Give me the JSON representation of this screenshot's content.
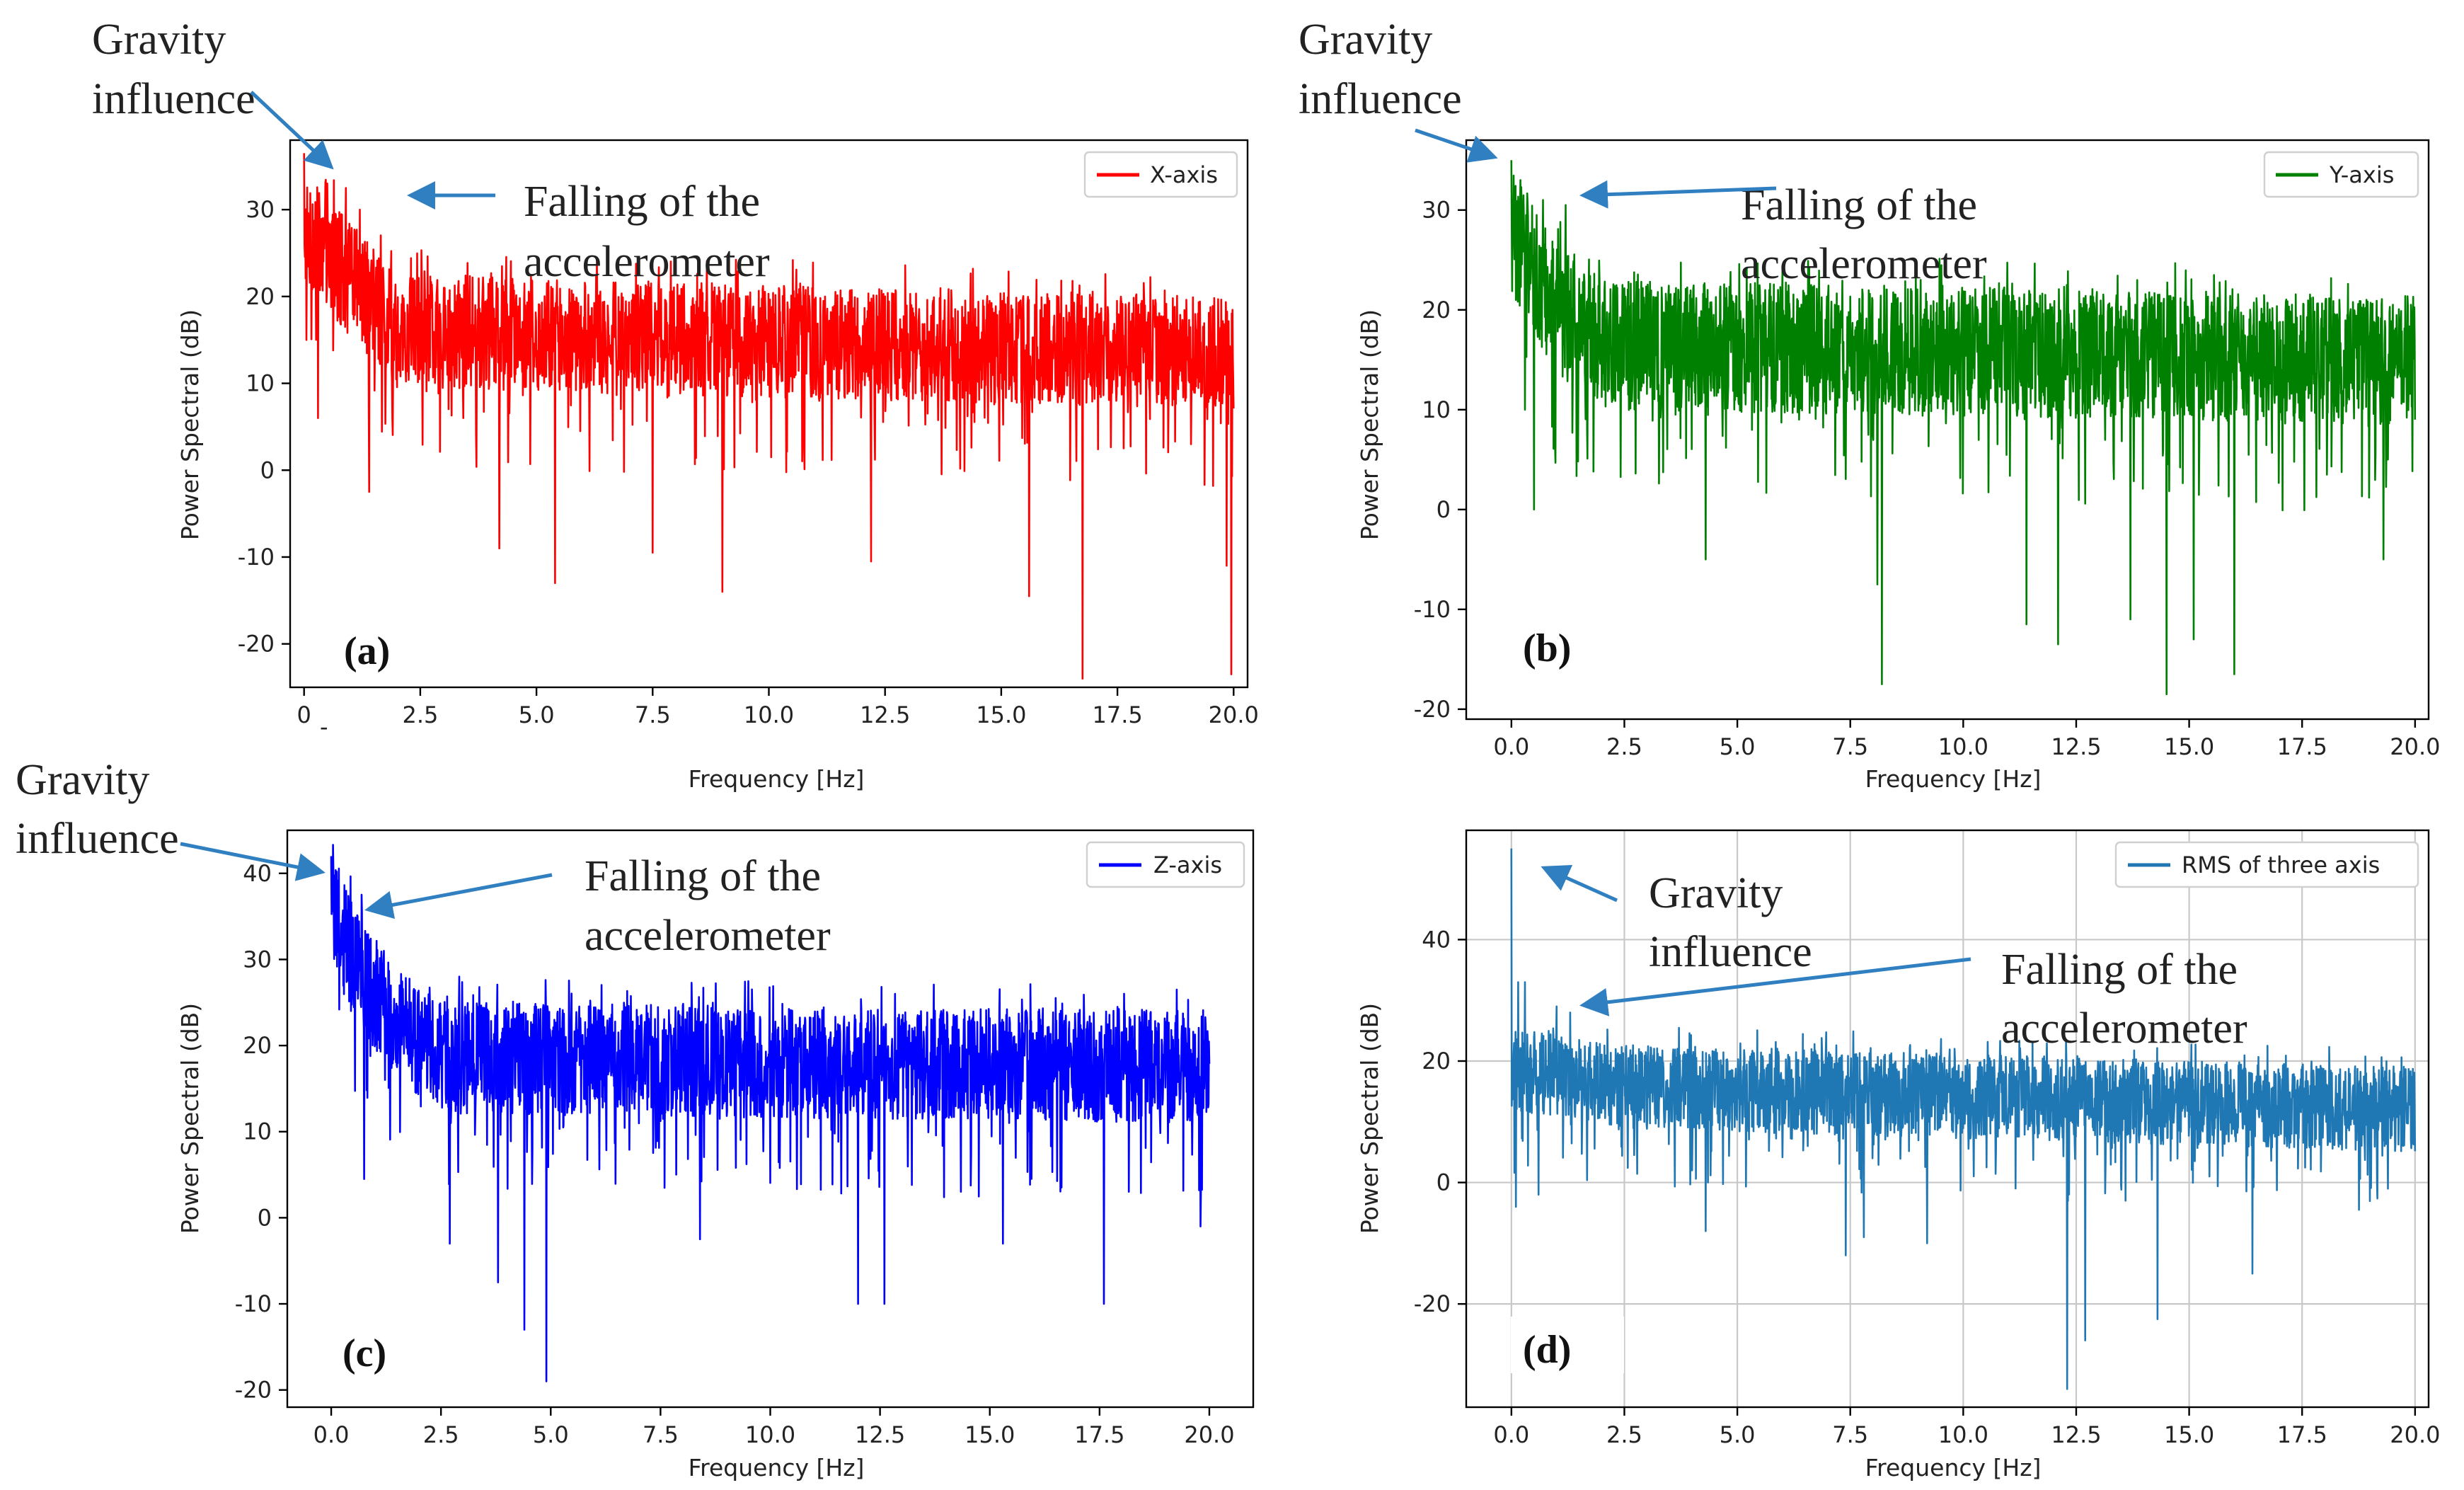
{
  "figure": {
    "annotation_color": "#2f7fc1"
  },
  "chart_data": [
    {
      "type": "line",
      "panel_label": "(a)",
      "title": "",
      "xlabel": "Frequency [Hz]",
      "ylabel": "Power Spectral (dB)",
      "xlim": [
        -0.3,
        20.3
      ],
      "ylim": [
        -25,
        38
      ],
      "xticks": [
        "0",
        "2.5",
        "5.0",
        "7.5",
        "10.0",
        "12.5",
        "15.0",
        "17.5",
        "20.0"
      ],
      "xtick_values": [
        0,
        2.5,
        5,
        7.5,
        10,
        12.5,
        15,
        17.5,
        20
      ],
      "extra_tick_text": "-",
      "yticks": [
        "30",
        "20",
        "10",
        "0",
        "-10",
        "-20"
      ],
      "ytick_values": [
        30,
        20,
        10,
        0,
        -10,
        -20
      ],
      "grid": false,
      "legend": "top-right",
      "series": [
        {
          "name": "X-axis",
          "color": "#ff0000",
          "x_range": [
            0,
            20
          ],
          "peak": 36.5,
          "baseline_points": [
            [
              0,
              28
            ],
            [
              0.5,
              25
            ],
            [
              1,
              22
            ],
            [
              2,
              16
            ],
            [
              20,
              13.5
            ]
          ],
          "spread": 6.5,
          "spikes": [
            [
              0.05,
              15
            ],
            [
              0.3,
              6
            ],
            [
              1.4,
              -2.5
            ],
            [
              4.2,
              -9
            ],
            [
              5.4,
              -13
            ],
            [
              7.5,
              -9.5
            ],
            [
              9.0,
              -14
            ],
            [
              12.2,
              -10.5
            ],
            [
              15.6,
              -14.5
            ],
            [
              16.75,
              -24
            ],
            [
              19.85,
              -11
            ],
            [
              19.95,
              -23.5
            ]
          ],
          "peaks_high": [
            [
              0.0,
              36.5
            ],
            [
              0.5,
              33
            ],
            [
              0.9,
              32.5
            ],
            [
              1.2,
              30
            ]
          ]
        }
      ],
      "annotations": [
        {
          "key": "gravity",
          "text": [
            "Gravity",
            "influence"
          ]
        },
        {
          "key": "falling",
          "text": [
            "Falling of the",
            "accelerometer"
          ]
        }
      ]
    },
    {
      "type": "line",
      "panel_label": "(b)",
      "title": "",
      "xlabel": "Frequency [Hz]",
      "ylabel": "Power Spectral (dB)",
      "xlim": [
        -1.0,
        20.3
      ],
      "ylim": [
        -21,
        37
      ],
      "xticks": [
        "0.0",
        "2.5",
        "5.0",
        "7.5",
        "10.0",
        "12.5",
        "15.0",
        "17.5",
        "20.0"
      ],
      "xtick_values": [
        0,
        2.5,
        5,
        7.5,
        10,
        12.5,
        15,
        17.5,
        20
      ],
      "yticks": [
        "30",
        "20",
        "10",
        "0",
        "-10",
        "-20"
      ],
      "ytick_values": [
        30,
        20,
        10,
        0,
        -10,
        -20
      ],
      "grid": false,
      "legend": "top-right",
      "series": [
        {
          "name": "Y-axis",
          "color": "#008000",
          "x_range": [
            0,
            20
          ],
          "peak": 35,
          "baseline_points": [
            [
              0,
              28
            ],
            [
              0.5,
              24
            ],
            [
              1,
              20
            ],
            [
              2,
              16.5
            ],
            [
              20,
              15
            ]
          ],
          "spread": 6.5,
          "spikes": [
            [
              0.1,
              21
            ],
            [
              0.3,
              10
            ],
            [
              0.5,
              0
            ],
            [
              4.3,
              -5
            ],
            [
              8.2,
              -17.5
            ],
            [
              8.1,
              -7.5
            ],
            [
              11.4,
              -11.5
            ],
            [
              12.1,
              -13.5
            ],
            [
              13.7,
              -11
            ],
            [
              14.5,
              -18.5
            ],
            [
              15.1,
              -13
            ],
            [
              16.0,
              -16.5
            ],
            [
              19.3,
              -5
            ]
          ],
          "peaks_high": [
            [
              0.0,
              35
            ],
            [
              0.2,
              33
            ],
            [
              0.7,
              31
            ],
            [
              1.2,
              30.5
            ]
          ]
        }
      ],
      "annotations": [
        {
          "key": "gravity",
          "text": [
            "Gravity",
            "influence"
          ]
        },
        {
          "key": "falling",
          "text": [
            "Falling of the",
            "accelerometer"
          ]
        }
      ]
    },
    {
      "type": "line",
      "panel_label": "(c)",
      "title": "",
      "xlabel": "Frequency [Hz]",
      "ylabel": "Power Spectral (dB)",
      "xlim": [
        -1.0,
        21.0
      ],
      "ylim": [
        -22,
        45
      ],
      "xticks": [
        "0.0",
        "2.5",
        "5.0",
        "7.5",
        "10.0",
        "12.5",
        "15.0",
        "17.5",
        "20.0"
      ],
      "xtick_values": [
        0,
        2.5,
        5,
        7.5,
        10,
        12.5,
        15,
        17.5,
        20
      ],
      "yticks": [
        "40",
        "30",
        "20",
        "10",
        "0",
        "-10",
        "-20"
      ],
      "ytick_values": [
        40,
        30,
        20,
        10,
        0,
        -10,
        -20
      ],
      "grid": false,
      "legend": "top-right",
      "series": [
        {
          "name": "Z-axis",
          "color": "#0000ff",
          "x_range": [
            0,
            20
          ],
          "peak": 42,
          "baseline_points": [
            [
              0,
              35
            ],
            [
              0.5,
              30
            ],
            [
              1,
              26
            ],
            [
              2,
              20
            ],
            [
              3,
              18.5
            ],
            [
              20,
              17.5
            ]
          ],
          "spread": 6.5,
          "spikes": [
            [
              0.4,
              5
            ],
            [
              0.75,
              4.5
            ],
            [
              2.7,
              -3
            ],
            [
              3.8,
              -7.5
            ],
            [
              4.4,
              -13
            ],
            [
              4.9,
              -19
            ],
            [
              8.4,
              -2.5
            ],
            [
              12.0,
              -10
            ],
            [
              12.6,
              -10
            ],
            [
              15.3,
              -3
            ],
            [
              17.6,
              -10
            ],
            [
              19.8,
              -1
            ]
          ],
          "peaks_high": [
            [
              0.0,
              42
            ],
            [
              0.4,
              36
            ],
            [
              0.7,
              35.5
            ],
            [
              1.2,
              31
            ]
          ]
        }
      ],
      "annotations": [
        {
          "key": "gravity",
          "text": [
            "Gravity",
            "influence"
          ]
        },
        {
          "key": "falling",
          "text": [
            "Falling of the",
            "accelerometer"
          ]
        }
      ]
    },
    {
      "type": "line",
      "panel_label": "(d)",
      "title": "",
      "xlabel": "Frequency [Hz]",
      "ylabel": "Power Spectral (dB)",
      "xlim": [
        -1.0,
        20.3
      ],
      "ylim": [
        -37,
        58
      ],
      "xticks": [
        "0.0",
        "2.5",
        "5.0",
        "7.5",
        "10.0",
        "12.5",
        "15.0",
        "17.5",
        "20.0"
      ],
      "xtick_values": [
        0,
        2.5,
        5,
        7.5,
        10,
        12.5,
        15,
        17.5,
        20
      ],
      "yticks": [
        "40",
        "20",
        "0",
        "-20"
      ],
      "ytick_values": [
        40,
        20,
        0,
        -20
      ],
      "grid": true,
      "legend": "top-right",
      "series": [
        {
          "name": "RMS of three axis",
          "color": "#1f77b4",
          "x_range": [
            0,
            20
          ],
          "peak": 55,
          "baseline_points": [
            [
              0,
              18
            ],
            [
              1,
              18
            ],
            [
              2,
              16
            ],
            [
              20,
              12
            ]
          ],
          "spread": 7,
          "spikes": [
            [
              0.1,
              -4
            ],
            [
              0.3,
              33
            ],
            [
              0.6,
              -2
            ],
            [
              4.3,
              -8
            ],
            [
              7.4,
              -12
            ],
            [
              7.8,
              -9
            ],
            [
              9.2,
              -10
            ],
            [
              12.3,
              -34
            ],
            [
              12.7,
              -26
            ],
            [
              14.3,
              -22.5
            ],
            [
              16.4,
              -15
            ],
            [
              19.4,
              -1
            ]
          ],
          "peaks_high": [
            [
              0.0,
              55
            ],
            [
              0.15,
              33
            ],
            [
              1.0,
              29
            ],
            [
              1.3,
              28
            ]
          ]
        }
      ],
      "annotations": [
        {
          "key": "gravity",
          "text": [
            "Gravity",
            "influence"
          ]
        },
        {
          "key": "falling",
          "text": [
            "Falling of the",
            "accelerometer"
          ]
        }
      ]
    }
  ]
}
